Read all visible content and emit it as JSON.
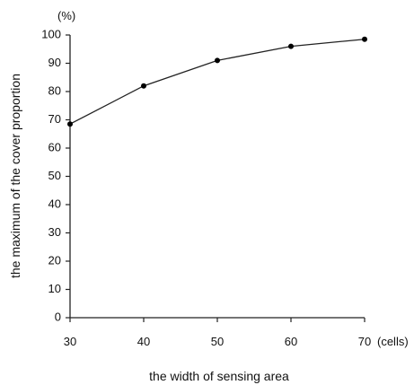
{
  "chart_data": {
    "type": "line",
    "title": "",
    "xlabel": "the width of sensing area",
    "ylabel": "the maximum of the cover proportion",
    "x_unit": "(cells)",
    "y_unit": "(%)",
    "x": [
      30,
      40,
      50,
      60,
      70
    ],
    "series": [
      {
        "values": [
          68.5,
          82,
          91,
          96,
          98.5
        ]
      }
    ],
    "xlim": [
      30,
      70
    ],
    "ylim": [
      0,
      100
    ],
    "x_ticks": [
      "30",
      "40",
      "50",
      "60",
      "70"
    ],
    "y_ticks": [
      "0",
      "10",
      "20",
      "30",
      "40",
      "50",
      "60",
      "70",
      "80",
      "90",
      "100"
    ],
    "grid": false,
    "legend": "none",
    "line_color": "#222222"
  }
}
